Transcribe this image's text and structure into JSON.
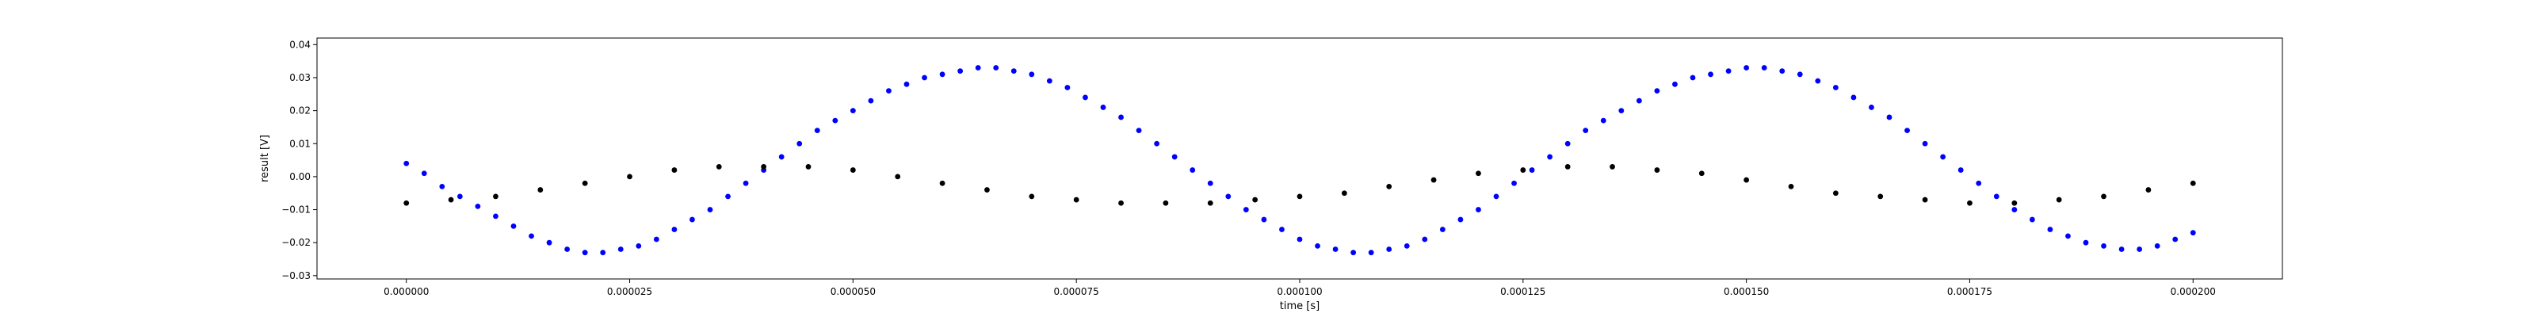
{
  "chart_data": {
    "type": "scatter",
    "title": "",
    "xlabel": "time [s]",
    "ylabel": "result [V]",
    "xlim": [
      -1e-05,
      0.00021
    ],
    "ylim": [
      -0.031,
      0.042
    ],
    "xticks": [
      {
        "value": 0.0,
        "label": "0.000000"
      },
      {
        "value": 2.5e-05,
        "label": "0.000025"
      },
      {
        "value": 5e-05,
        "label": "0.000050"
      },
      {
        "value": 7.5e-05,
        "label": "0.000075"
      },
      {
        "value": 0.0001,
        "label": "0.000100"
      },
      {
        "value": 0.000125,
        "label": "0.000125"
      },
      {
        "value": 0.00015,
        "label": "0.000150"
      },
      {
        "value": 0.000175,
        "label": "0.000175"
      },
      {
        "value": 0.0002,
        "label": "0.000200"
      }
    ],
    "yticks": [
      {
        "value": -0.03,
        "label": "−0.03"
      },
      {
        "value": -0.02,
        "label": "−0.02"
      },
      {
        "value": -0.01,
        "label": "−0.01"
      },
      {
        "value": 0.0,
        "label": "0.00"
      },
      {
        "value": 0.01,
        "label": "0.01"
      },
      {
        "value": 0.02,
        "label": "0.02"
      },
      {
        "value": 0.03,
        "label": "0.03"
      },
      {
        "value": 0.04,
        "label": "0.04"
      }
    ],
    "grid": false,
    "legend": "none",
    "series": [
      {
        "color": "#0000ff",
        "x": [
          0.0,
          2e-06,
          4e-06,
          6e-06,
          8e-06,
          1e-05,
          1.2e-05,
          1.4e-05,
          1.6e-05,
          1.8e-05,
          2e-05,
          2.2e-05,
          2.4e-05,
          2.6e-05,
          2.8e-05,
          3e-05,
          3.2e-05,
          3.4e-05,
          3.6e-05,
          3.8e-05,
          4e-05,
          4.2e-05,
          4.4e-05,
          4.6e-05,
          4.8e-05,
          5e-05,
          5.2e-05,
          5.4e-05,
          5.6e-05,
          5.8e-05,
          6e-05,
          6.2e-05,
          6.4e-05,
          6.6e-05,
          6.8e-05,
          7e-05,
          7.2e-05,
          7.4e-05,
          7.6e-05,
          7.8e-05,
          8e-05,
          8.2e-05,
          8.4e-05,
          8.6e-05,
          8.8e-05,
          9e-05,
          9.2e-05,
          9.4e-05,
          9.6e-05,
          9.8e-05,
          0.0001,
          0.000102,
          0.000104,
          0.000106,
          0.000108,
          0.00011,
          0.000112,
          0.000114,
          0.000116,
          0.000118,
          0.00012,
          0.000122,
          0.000124,
          0.000126,
          0.000128,
          0.00013,
          0.000132,
          0.000134,
          0.000136,
          0.000138,
          0.00014,
          0.000142,
          0.000144,
          0.000146,
          0.000148,
          0.00015,
          0.000152,
          0.000154,
          0.000156,
          0.000158,
          0.00016,
          0.000162,
          0.000164,
          0.000166,
          0.000168,
          0.00017,
          0.000172,
          0.000174,
          0.000176,
          0.000178,
          0.00018,
          0.000182,
          0.000184,
          0.000186,
          0.000188,
          0.00019,
          0.000192,
          0.000194,
          0.000196,
          0.000198,
          0.0002
        ],
        "y": [
          0.004,
          0.001,
          -0.003,
          -0.006,
          -0.009,
          -0.012,
          -0.015,
          -0.018,
          -0.02,
          -0.022,
          -0.023,
          -0.023,
          -0.022,
          -0.021,
          -0.019,
          -0.016,
          -0.013,
          -0.01,
          -0.006,
          -0.002,
          0.002,
          0.006,
          0.01,
          0.014,
          0.017,
          0.02,
          0.023,
          0.026,
          0.028,
          0.03,
          0.031,
          0.032,
          0.033,
          0.033,
          0.032,
          0.031,
          0.029,
          0.027,
          0.024,
          0.021,
          0.018,
          0.014,
          0.01,
          0.006,
          0.002,
          -0.002,
          -0.006,
          -0.01,
          -0.013,
          -0.016,
          -0.019,
          -0.021,
          -0.022,
          -0.023,
          -0.023,
          -0.022,
          -0.021,
          -0.019,
          -0.016,
          -0.013,
          -0.01,
          -0.006,
          -0.002,
          0.002,
          0.006,
          0.01,
          0.014,
          0.017,
          0.02,
          0.023,
          0.026,
          0.028,
          0.03,
          0.031,
          0.032,
          0.033,
          0.033,
          0.032,
          0.031,
          0.029,
          0.027,
          0.024,
          0.021,
          0.018,
          0.014,
          0.01,
          0.006,
          0.002,
          -0.002,
          -0.006,
          -0.01,
          -0.013,
          -0.016,
          -0.018,
          -0.02,
          -0.021,
          -0.022,
          -0.022,
          -0.021,
          -0.019,
          -0.017
        ]
      },
      {
        "color": "#000000",
        "x": [
          0.0,
          5e-06,
          1e-05,
          1.5e-05,
          2e-05,
          2.5e-05,
          3e-05,
          3.5e-05,
          4e-05,
          4.5e-05,
          5e-05,
          5.5e-05,
          6e-05,
          6.5e-05,
          7e-05,
          7.5e-05,
          8e-05,
          8.5e-05,
          9e-05,
          9.5e-05,
          0.0001,
          0.000105,
          0.00011,
          0.000115,
          0.00012,
          0.000125,
          0.00013,
          0.000135,
          0.00014,
          0.000145,
          0.00015,
          0.000155,
          0.00016,
          0.000165,
          0.00017,
          0.000175,
          0.00018,
          0.000185,
          0.00019,
          0.000195,
          0.0002
        ],
        "y": [
          -0.008,
          -0.007,
          -0.006,
          -0.004,
          -0.002,
          0.0,
          0.002,
          0.003,
          0.003,
          0.003,
          0.002,
          0.0,
          -0.002,
          -0.004,
          -0.006,
          -0.007,
          -0.008,
          -0.008,
          -0.008,
          -0.007,
          -0.006,
          -0.005,
          -0.003,
          -0.001,
          0.001,
          0.002,
          0.003,
          0.003,
          0.002,
          0.001,
          -0.001,
          -0.003,
          -0.005,
          -0.006,
          -0.007,
          -0.008,
          -0.008,
          -0.007,
          -0.006,
          -0.004,
          -0.002
        ]
      }
    ]
  }
}
